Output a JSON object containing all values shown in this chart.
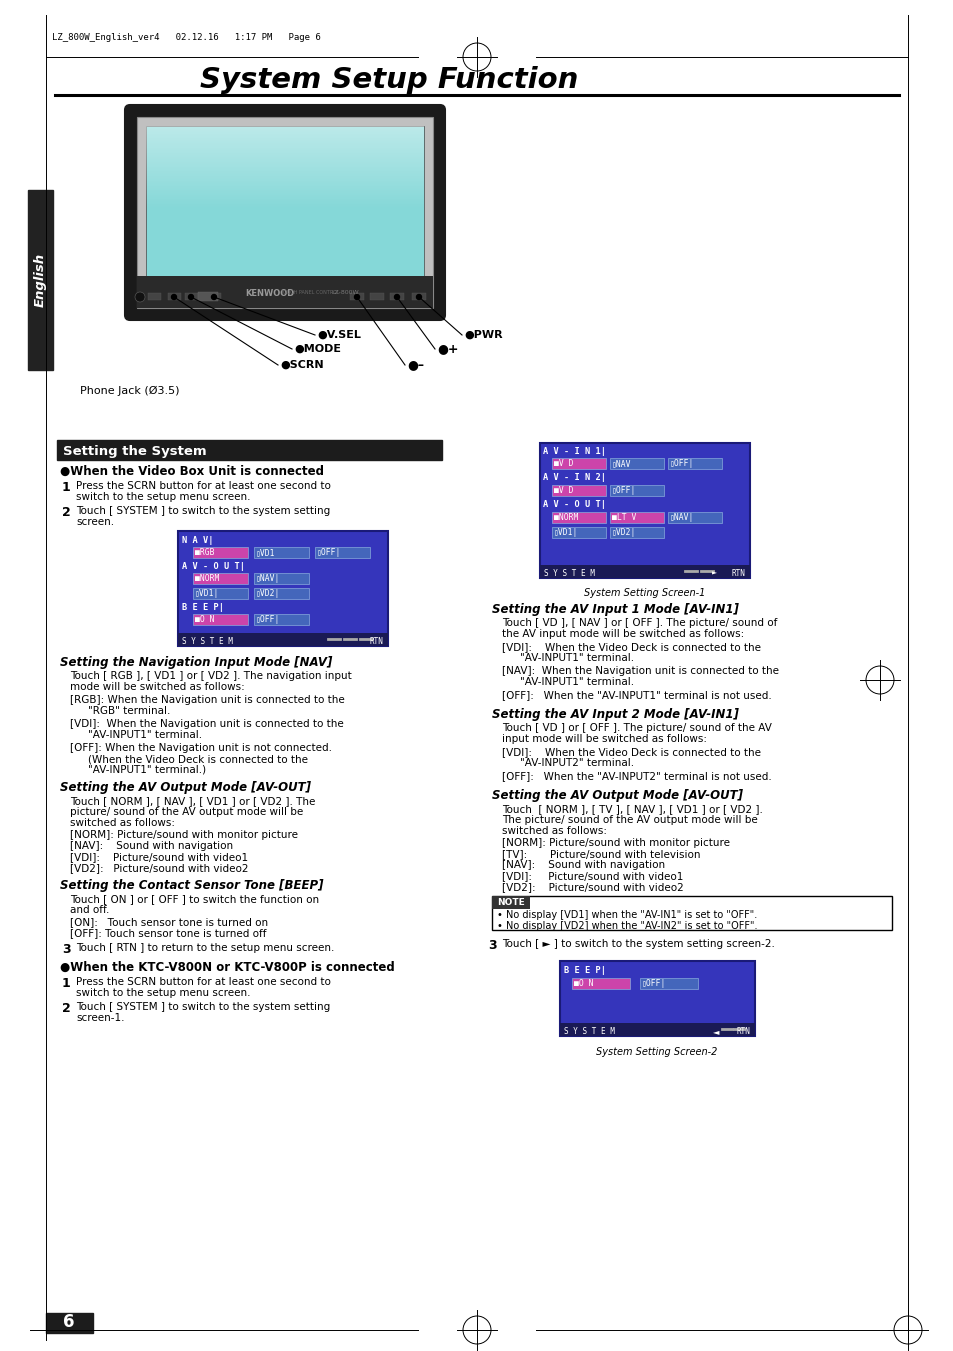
{
  "page_header": "LZ_800W_English_ver4   02.12.16   1:17 PM   Page 6",
  "title": "System Setup Function",
  "section_header": "Setting the System",
  "bg_color": "#ffffff",
  "body_fs": 7.5,
  "header_fs": 8.5,
  "section_fs": 9.5
}
